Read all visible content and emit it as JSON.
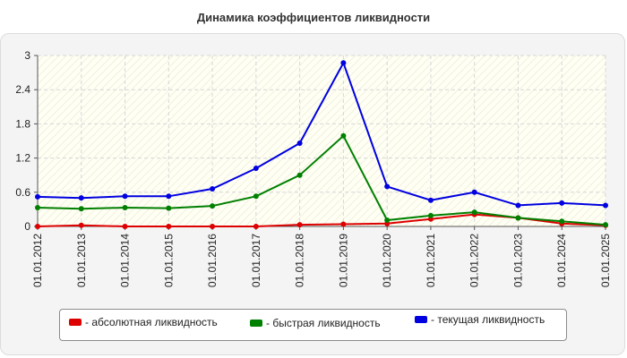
{
  "title": "Динамика коэффициентов ликвидности",
  "chart_data": {
    "type": "line",
    "title": "Динамика коэффициентов ликвидности",
    "xlabel": "",
    "ylabel": "",
    "categories": [
      "01.01.2012",
      "01.01.2013",
      "01.01.2014",
      "01.01.2015",
      "01.01.2016",
      "01.01.2017",
      "01.01.2018",
      "01.01.2019",
      "01.01.2020",
      "01.01.2021",
      "01.01.2022",
      "01.01.2023",
      "01.01.2024",
      "01.01.2025"
    ],
    "yticks": [
      "0",
      "0.6",
      "1.2",
      "1.8",
      "2.4",
      "3"
    ],
    "ylim": [
      0,
      3
    ],
    "grid": true,
    "legend_position": "bottom",
    "series": [
      {
        "name": "- абсолютная ликвидность",
        "color": "#dd0000",
        "values": [
          0.0,
          0.02,
          0.0,
          0.0,
          0.0,
          0.0,
          0.03,
          0.04,
          0.05,
          0.13,
          0.21,
          0.15,
          0.05,
          0.02
        ]
      },
      {
        "name": "- быстрая ликвидность",
        "color": "#008000",
        "values": [
          0.33,
          0.31,
          0.33,
          0.32,
          0.36,
          0.53,
          0.9,
          1.59,
          0.11,
          0.19,
          0.25,
          0.15,
          0.09,
          0.03
        ]
      },
      {
        "name": "- текущая ликвидность",
        "color": "#0000e0",
        "values": [
          0.52,
          0.5,
          0.53,
          0.53,
          0.66,
          1.02,
          1.46,
          2.87,
          0.7,
          0.46,
          0.6,
          0.37,
          0.41,
          0.37
        ]
      }
    ]
  }
}
